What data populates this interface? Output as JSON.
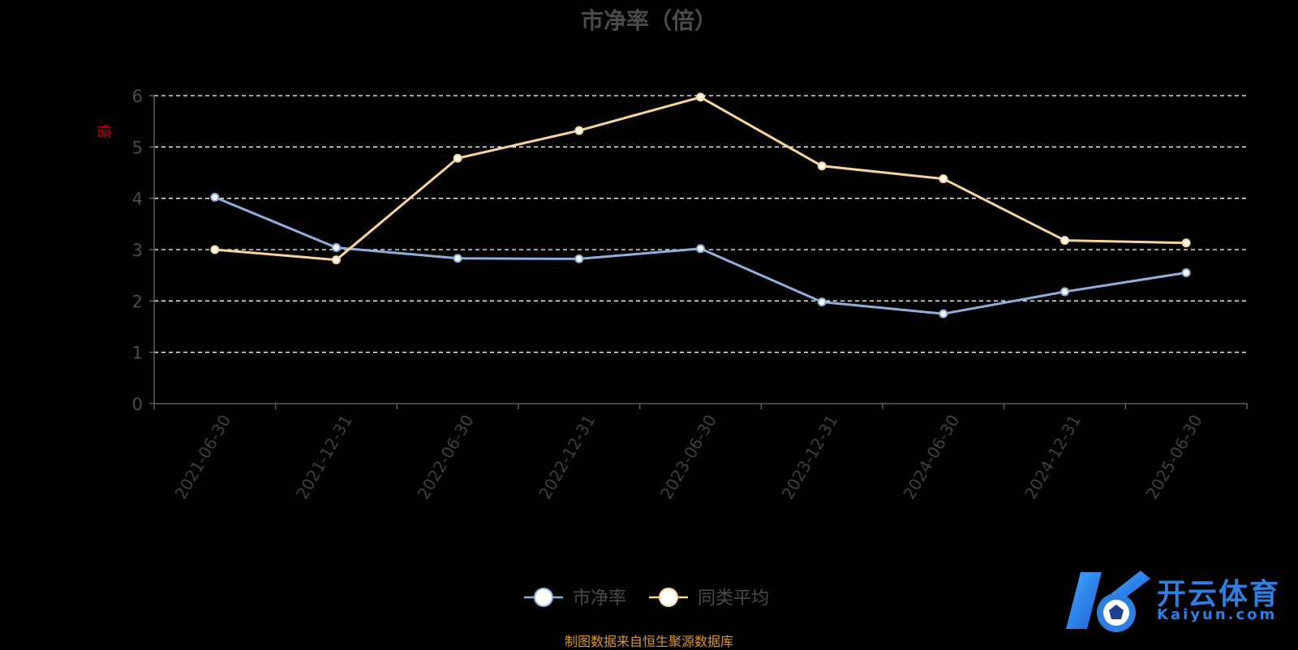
{
  "chart_data": {
    "type": "line",
    "title": "市净率（倍）",
    "xlabel": "",
    "ylabel": "倍",
    "categories": [
      "2021-06-30",
      "2021-12-31",
      "2022-06-30",
      "2022-12-31",
      "2023-06-30",
      "2023-12-31",
      "2024-06-30",
      "2024-12-31",
      "2025-06-30"
    ],
    "y_ticks": [
      "0",
      "1",
      "2",
      "3",
      "4",
      "5",
      "6"
    ],
    "ylim": [
      0,
      6
    ],
    "grid": true,
    "legend_position": "bottom",
    "series": [
      {
        "name": "市净率",
        "color": "#8eaedc",
        "values": [
          4.02,
          3.04,
          2.83,
          2.82,
          3.02,
          1.98,
          1.75,
          2.18,
          2.55
        ]
      },
      {
        "name": "同类平均",
        "color": "#f7d59a",
        "values": [
          3.0,
          2.8,
          4.78,
          5.32,
          5.97,
          4.63,
          4.38,
          3.18,
          3.13
        ]
      }
    ]
  },
  "source_note": "制图数据来自恒生聚源数据库",
  "watermark": {
    "brand": "开云体育",
    "domain": "Kaiyun.com",
    "logo_letter": "K"
  }
}
